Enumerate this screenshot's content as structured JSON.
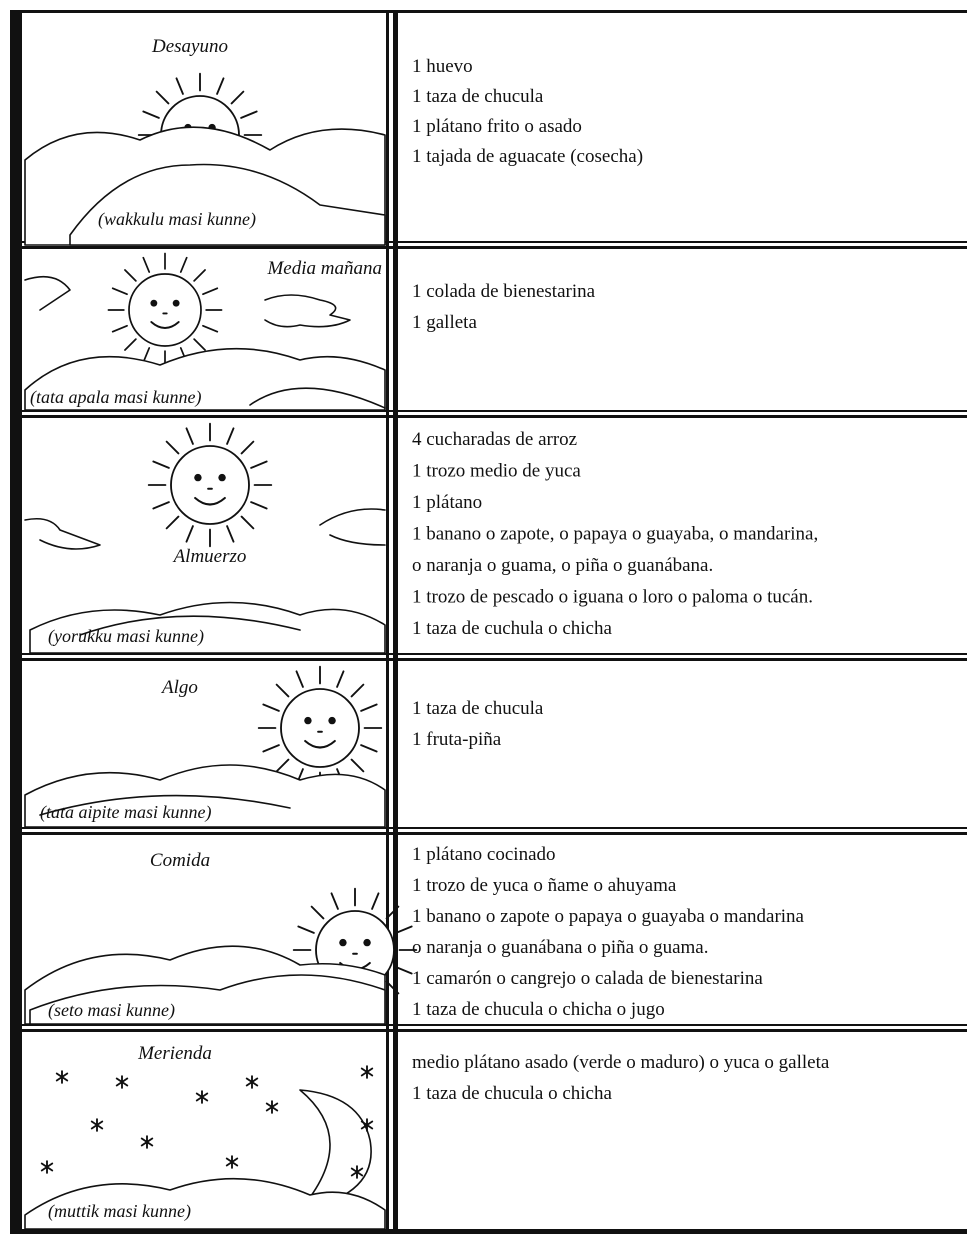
{
  "rows": [
    {
      "meal": "Desayuno",
      "native": "(wakkulu masi kunne)",
      "items": [
        "1 huevo",
        "1 taza de chucula",
        "1 plátano frito o asado",
        "1 tajada de aguacate (cosecha)"
      ]
    },
    {
      "meal": "Media mañana",
      "native": "(tata apala masi kunne)",
      "items": [
        "1 colada de bienestarina",
        "1 galleta"
      ]
    },
    {
      "meal": "Almuerzo",
      "native": "(yorukku masi kunne)",
      "items": [
        "4 cucharadas de arroz",
        "1 trozo medio de yuca",
        "1 plátano",
        "1 banano o zapote, o papaya o guayaba, o mandarina,",
        "o naranja o guama, o piña o guanábana.",
        "1 trozo de pescado o iguana o loro o paloma o tucán.",
        "1 taza de cuchula o chicha"
      ]
    },
    {
      "meal": "Algo",
      "native": "(tata aipite masi kunne)",
      "items": [
        "1 taza de chucula",
        "1 fruta-piña"
      ]
    },
    {
      "meal": "Comida",
      "native": "(seto masi kunne)",
      "items": [
        "1 plátano cocinado",
        "1 trozo de yuca o ñame o ahuyama",
        "1 banano o zapote o papaya o guayaba o mandarina",
        "o naranja o guanábana o piña o guama.",
        "1 camarón o cangrejo o calada de bienestarina",
        "1 taza de chucula o chicha o jugo"
      ]
    },
    {
      "meal": "Merienda",
      "native": "(muttik masi kunne)",
      "items": [
        "medio plátano asado (verde o maduro) o yuca o galleta",
        "1 taza de chucula o chicha"
      ]
    }
  ]
}
